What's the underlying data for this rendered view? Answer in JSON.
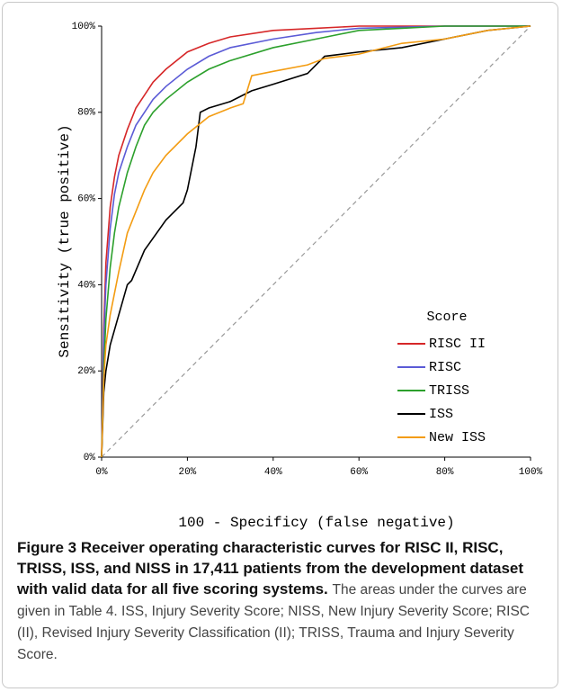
{
  "chart_data": {
    "type": "line",
    "xlabel": "100 - Specificy (false negative)",
    "ylabel": "Sensitivity (true positive)",
    "legend_title": "Score",
    "legend": "lower right",
    "xlim": [
      0,
      100
    ],
    "ylim": [
      0,
      100
    ],
    "xticks": [
      {
        "value": 0,
        "label": "0%"
      },
      {
        "value": 20,
        "label": "20%"
      },
      {
        "value": 40,
        "label": "40%"
      },
      {
        "value": 60,
        "label": "60%"
      },
      {
        "value": 80,
        "label": "80%"
      },
      {
        "value": 100,
        "label": "100%"
      }
    ],
    "yticks": [
      {
        "value": 0,
        "label": "0%"
      },
      {
        "value": 20,
        "label": "20%"
      },
      {
        "value": 40,
        "label": "40%"
      },
      {
        "value": 60,
        "label": "60%"
      },
      {
        "value": 80,
        "label": "80%"
      },
      {
        "value": 100,
        "label": "100%"
      }
    ],
    "reference_line_color": "#999999",
    "series": [
      {
        "name": "RISC II",
        "color": "#d62728",
        "x": [
          0,
          0.5,
          1,
          2,
          3,
          4,
          6,
          8,
          10,
          12,
          15,
          20,
          25,
          30,
          40,
          50,
          60,
          100
        ],
        "values": [
          0,
          30,
          45,
          58,
          65,
          70,
          76,
          81,
          84,
          87,
          90,
          94,
          96,
          97.5,
          99,
          99.5,
          100,
          100
        ]
      },
      {
        "name": "RISC",
        "color": "#5b5bd6",
        "x": [
          0,
          0.5,
          1,
          2,
          3,
          4,
          6,
          8,
          10,
          12,
          15,
          20,
          25,
          30,
          40,
          50,
          60,
          80,
          100
        ],
        "values": [
          0,
          27,
          40,
          53,
          61,
          66,
          72,
          77,
          80,
          83,
          86,
          90,
          93,
          95,
          97,
          98.5,
          99.5,
          100,
          100
        ]
      },
      {
        "name": "TRISS",
        "color": "#2ca02c",
        "x": [
          0,
          0.5,
          1,
          2,
          3,
          4,
          6,
          8,
          10,
          12,
          15,
          20,
          25,
          30,
          40,
          50,
          60,
          70,
          80,
          100
        ],
        "values": [
          0,
          20,
          32,
          44,
          52,
          58,
          66,
          72,
          77,
          80,
          83,
          87,
          90,
          92,
          95,
          97,
          99,
          99.5,
          100,
          100
        ]
      },
      {
        "name": "ISS",
        "color": "#000000",
        "x": [
          0,
          0.5,
          1,
          2,
          4,
          6,
          7,
          10,
          15,
          18,
          19,
          20,
          22,
          23,
          25,
          30,
          33,
          35,
          40,
          48,
          52,
          60,
          70,
          80,
          90,
          100
        ],
        "values": [
          0,
          15,
          20,
          26,
          33,
          40,
          41,
          48,
          55,
          58,
          59,
          62,
          72,
          80,
          81,
          82.5,
          84,
          85,
          86.5,
          89,
          93,
          94,
          95,
          97,
          99,
          100
        ]
      },
      {
        "name": "New ISS",
        "color": "#f39c12",
        "x": [
          0,
          0.5,
          1,
          2,
          4,
          6,
          8,
          10,
          12,
          15,
          20,
          25,
          30,
          33,
          35,
          40,
          48,
          52,
          60,
          70,
          80,
          90,
          100
        ],
        "values": [
          0,
          18,
          26,
          33,
          43,
          52,
          57,
          62,
          66,
          70,
          75,
          79,
          81,
          82,
          88.5,
          89.5,
          91,
          92.5,
          93.5,
          96,
          97,
          99,
          100
        ]
      }
    ]
  },
  "caption": {
    "label": "Figure 3",
    "title": "Receiver operating characteristic curves for RISC II, RISC, TRISS, ISS, and NISS in 17,411 patients from the development dataset with valid data for all five scoring systems.",
    "text": "The areas under the curves are given in Table 4. ISS, Injury Severity Score; NISS, New Injury Severity Score; RISC (II), Revised Injury Severity Classification (II); TRISS, Trauma and Injury Severity Score."
  }
}
